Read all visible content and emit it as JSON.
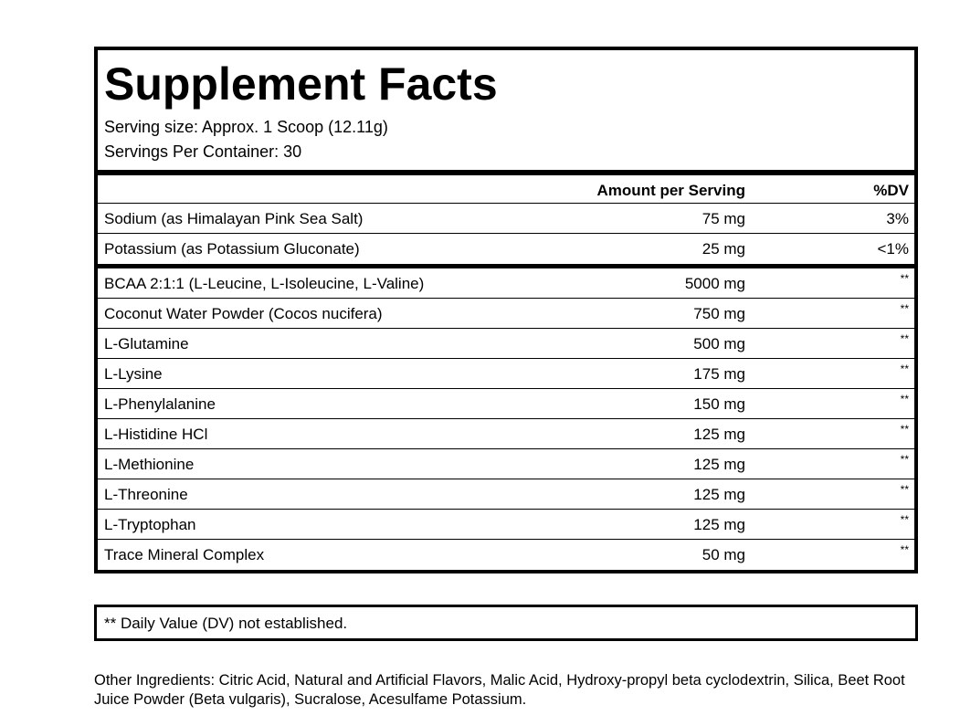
{
  "title": "Supplement Facts",
  "serving_size": "Serving size: Approx. 1 Scoop (12.11g)",
  "servings_per_container": "Servings Per Container: 30",
  "header": {
    "amount": "Amount per Serving",
    "dv": "%DV"
  },
  "minerals": [
    {
      "name": "Sodium (as Himalayan Pink Sea Salt)",
      "amount": "75 mg",
      "dv": "3%"
    },
    {
      "name": "Potassium (as Potassium Gluconate)",
      "amount": "25 mg",
      "dv": "<1%"
    }
  ],
  "ingredients": [
    {
      "name": "BCAA 2:1:1 (L-Leucine, L-Isoleucine, L-Valine)",
      "amount": "5000 mg",
      "dv": "**"
    },
    {
      "name": "Coconut Water Powder (Cocos nucifera)",
      "amount": "750 mg",
      "dv": "**"
    },
    {
      "name": "L-Glutamine",
      "amount": "500 mg",
      "dv": "**"
    },
    {
      "name": "L-Lysine",
      "amount": "175 mg",
      "dv": "**"
    },
    {
      "name": "L-Phenylalanine",
      "amount": "150 mg",
      "dv": "**"
    },
    {
      "name": "L-Histidine HCl",
      "amount": "125 mg",
      "dv": "**"
    },
    {
      "name": "L-Methionine",
      "amount": "125 mg",
      "dv": "**"
    },
    {
      "name": "L-Threonine",
      "amount": "125 mg",
      "dv": "**"
    },
    {
      "name": "L-Tryptophan",
      "amount": "125 mg",
      "dv": "**"
    },
    {
      "name": "Trace Mineral Complex",
      "amount": "50 mg",
      "dv": "**"
    }
  ],
  "footnote": "** Daily Value (DV) not established.",
  "other_ingredients": "Other Ingredients: Citric Acid, Natural and Artificial Flavors, Malic Acid, Hydroxy-propyl beta cyclodextrin, Silica, Beet Root Juice Powder (Beta vulgaris), Sucralose, Acesulfame Potassium."
}
